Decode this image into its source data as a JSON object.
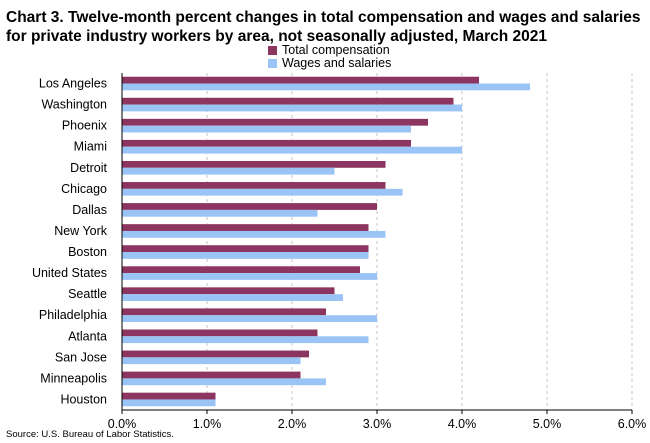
{
  "header": {
    "title": "Chart 3. Twelve-month percent changes in total compensation and wages and salaries for private industry workers by area, not seasonally adjusted, March 2021"
  },
  "footer": {
    "source": "Source: U.S. Bureau of Labor Statistics."
  },
  "chart_data": {
    "type": "bar",
    "orientation": "horizontal",
    "title": "Chart 3. Twelve-month percent changes in total compensation and wages and salaries for private industry workers by area, not seasonally adjusted, March 2021",
    "xlabel": "",
    "ylabel": "",
    "xlim": [
      0,
      6
    ],
    "xticks": [
      "0.0%",
      "1.0%",
      "2.0%",
      "3.0%",
      "4.0%",
      "5.0%",
      "6.0%"
    ],
    "grid": "vertical dashed",
    "legend_position": "top-center",
    "categories": [
      "Los Angeles",
      "Washington",
      "Phoenix",
      "Miami",
      "Detroit",
      "Chicago",
      "Dallas",
      "New York",
      "Boston",
      "United States",
      "Seattle",
      "Philadelphia",
      "Atlanta",
      "San Jose",
      "Minneapolis",
      "Houston"
    ],
    "series": [
      {
        "name": "Total compensation",
        "color": "#8B3560",
        "values": [
          4.2,
          3.9,
          3.6,
          3.4,
          3.1,
          3.1,
          3.0,
          2.9,
          2.9,
          2.8,
          2.5,
          2.4,
          2.3,
          2.2,
          2.1,
          1.1
        ]
      },
      {
        "name": "Wages and salaries",
        "color": "#99C4F5",
        "values": [
          4.8,
          4.0,
          3.4,
          4.0,
          2.5,
          3.3,
          2.3,
          3.1,
          2.9,
          3.0,
          2.6,
          3.0,
          2.9,
          2.1,
          2.4,
          1.1
        ]
      }
    ]
  }
}
